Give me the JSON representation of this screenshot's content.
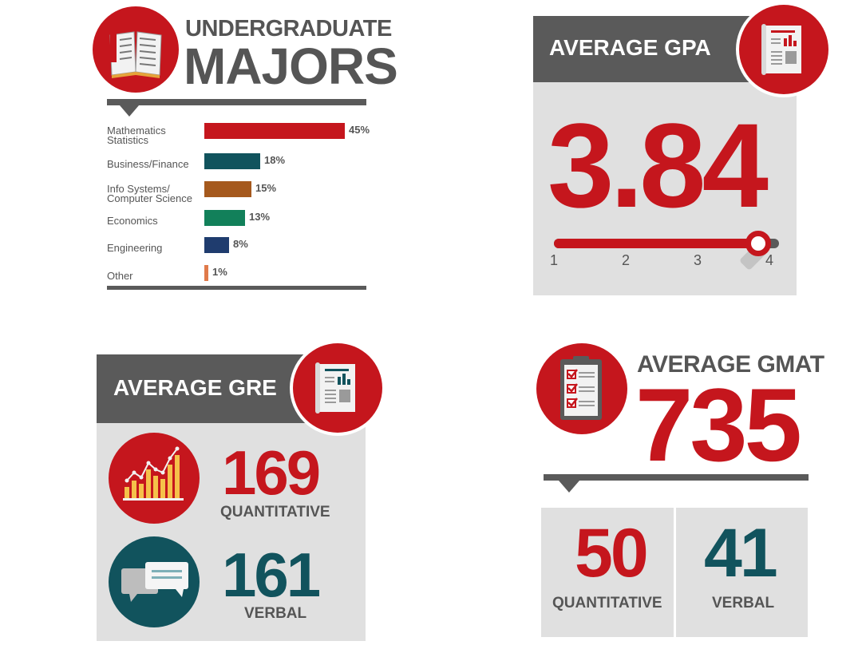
{
  "majors": {
    "title_line1": "UNDERGRADUATE",
    "title_line2": "MAJORS",
    "icon": "open-book-icon"
  },
  "gpa": {
    "title": "AVERAGE GPA",
    "value": "3.84",
    "icon": "report-document-icon",
    "ticks": [
      "1",
      "2",
      "3",
      "4"
    ],
    "slider_value": 3.84,
    "slider_min": 1,
    "slider_max": 4
  },
  "gre": {
    "title": "AVERAGE GRE",
    "icon": "report-document-icon",
    "quantitative": {
      "value": "169",
      "label": "QUANTITATIVE",
      "icon": "bar-chart-icon"
    },
    "verbal": {
      "value": "161",
      "label": "VERBAL",
      "icon": "speech-bubbles-icon"
    }
  },
  "gmat": {
    "title": "AVERAGE GMAT",
    "value": "735",
    "icon": "checklist-clipboard-icon",
    "quantitative": {
      "value": "50",
      "label": "QUANTITATIVE"
    },
    "verbal": {
      "value": "41",
      "label": "VERBAL"
    }
  },
  "colors": {
    "red": "#c5161d",
    "teal": "#11535d",
    "dark_gray": "#5a5a5a",
    "light_gray": "#e0e0e0"
  },
  "chart_data": {
    "type": "bar",
    "orientation": "horizontal",
    "title": "UNDERGRADUATE MAJORS",
    "categories": [
      "Mathematics\nStatistics",
      "Business/Finance",
      "Info Systems/\nComputer Science",
      "Economics",
      "Engineering",
      "Other"
    ],
    "values": [
      45,
      18,
      15,
      13,
      8,
      1
    ],
    "value_labels": [
      "45%",
      "18%",
      "15%",
      "13%",
      "8%",
      "1%"
    ],
    "bar_colors": [
      "#c5161d",
      "#11535d",
      "#a5591d",
      "#12805a",
      "#1f3c6e",
      "#e07a4a"
    ],
    "unit": "%",
    "xlim": [
      0,
      45
    ],
    "grid": false,
    "legend": "none"
  }
}
